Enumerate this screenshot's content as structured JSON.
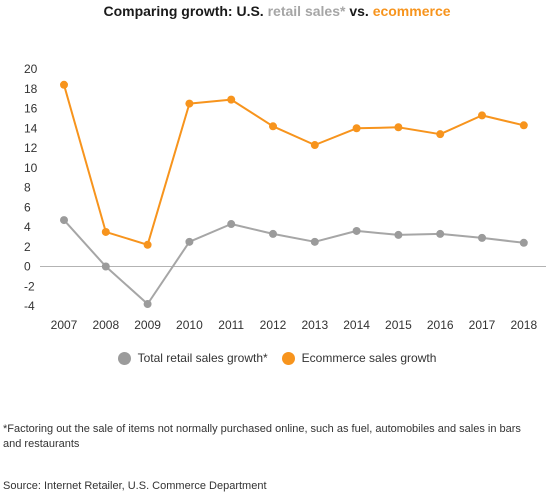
{
  "title": {
    "prefix": "Comparing growth: U.S. ",
    "retail": "retail sales",
    "asterisk": "*",
    "vs": " vs. ",
    "ecommerce": "ecommerce"
  },
  "colors": {
    "retail": "#a6a6a6",
    "ecommerce": "#f7941d",
    "retail_marker": "#9b9b9b",
    "zero_line": "#b3b3b3"
  },
  "chart_data": {
    "type": "line",
    "x": [
      "2007",
      "2008",
      "2009",
      "2010",
      "2011",
      "2012",
      "2013",
      "2014",
      "2015",
      "2016",
      "2017",
      "2018"
    ],
    "series": [
      {
        "name": "Total retail sales growth*",
        "color": "#a6a6a6",
        "values": [
          4.7,
          0.0,
          -3.8,
          2.5,
          4.3,
          3.3,
          2.5,
          3.6,
          3.2,
          3.3,
          2.9,
          2.4
        ]
      },
      {
        "name": "Ecommerce sales growth",
        "color": "#f7941d",
        "values": [
          18.4,
          3.5,
          2.2,
          16.5,
          16.9,
          14.2,
          12.3,
          14.0,
          14.1,
          13.4,
          15.3,
          14.3
        ]
      }
    ],
    "yticks": [
      20,
      18,
      16,
      14,
      12,
      10,
      8,
      6,
      4,
      2,
      0,
      -2,
      -4
    ],
    "ylim": [
      -4,
      20
    ],
    "grid": false,
    "legend": "bottom"
  },
  "footnote": "*Factoring out the sale of items not normally purchased online, such as fuel, automobiles and sales in bars and restaurants",
  "source": "Source: Internet Retailer, U.S. Commerce Department"
}
